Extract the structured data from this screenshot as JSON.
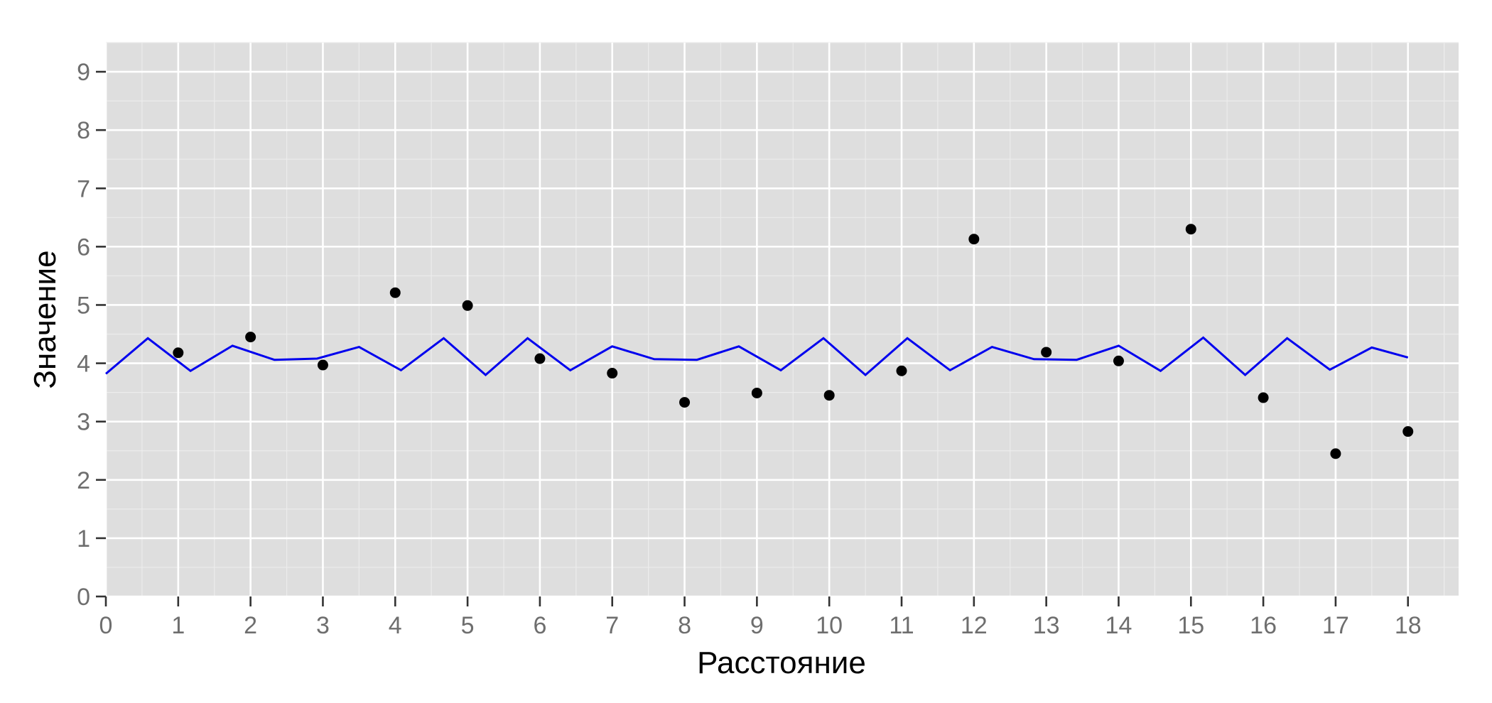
{
  "chart_data": {
    "type": "scatter",
    "xlabel": "Расстояние",
    "ylabel": "Значение",
    "xlim": [
      0,
      18.7
    ],
    "ylim": [
      0,
      9.5
    ],
    "x_ticks": [
      0,
      1,
      2,
      3,
      4,
      5,
      6,
      7,
      8,
      9,
      10,
      11,
      12,
      13,
      14,
      15,
      16,
      17,
      18
    ],
    "y_ticks": [
      0,
      1,
      2,
      3,
      4,
      5,
      6,
      7,
      8,
      9
    ],
    "grid": true,
    "colors": {
      "panel": "#dedede",
      "points": "#000000",
      "line": "#0000ee"
    },
    "points": {
      "x": [
        1,
        2,
        3,
        4,
        5,
        6,
        7,
        8,
        9,
        10,
        11,
        12,
        13,
        14,
        15,
        16,
        17,
        18
      ],
      "y": [
        4.18,
        4.45,
        3.97,
        5.21,
        4.99,
        4.08,
        3.83,
        3.33,
        3.49,
        3.45,
        3.87,
        6.13,
        4.19,
        4.04,
        6.3,
        3.41,
        2.45,
        2.83
      ]
    },
    "line": {
      "x": [
        0,
        0.58,
        1.17,
        1.75,
        2.33,
        2.92,
        3.5,
        4.08,
        4.67,
        5.25,
        5.83,
        6.42,
        7.0,
        7.58,
        8.17,
        8.75,
        9.33,
        9.92,
        10.5,
        11.08,
        11.67,
        12.25,
        12.83,
        13.42,
        14.0,
        14.58,
        15.17,
        15.75,
        16.33,
        16.92,
        17.5,
        18.0
      ],
      "y": [
        3.82,
        4.43,
        3.87,
        4.3,
        4.06,
        4.08,
        4.28,
        3.88,
        4.43,
        3.8,
        4.43,
        3.88,
        4.29,
        4.07,
        4.06,
        4.29,
        3.88,
        4.43,
        3.8,
        4.43,
        3.88,
        4.28,
        4.07,
        4.06,
        4.3,
        3.87,
        4.44,
        3.8,
        4.43,
        3.89,
        4.27,
        4.1
      ]
    }
  }
}
